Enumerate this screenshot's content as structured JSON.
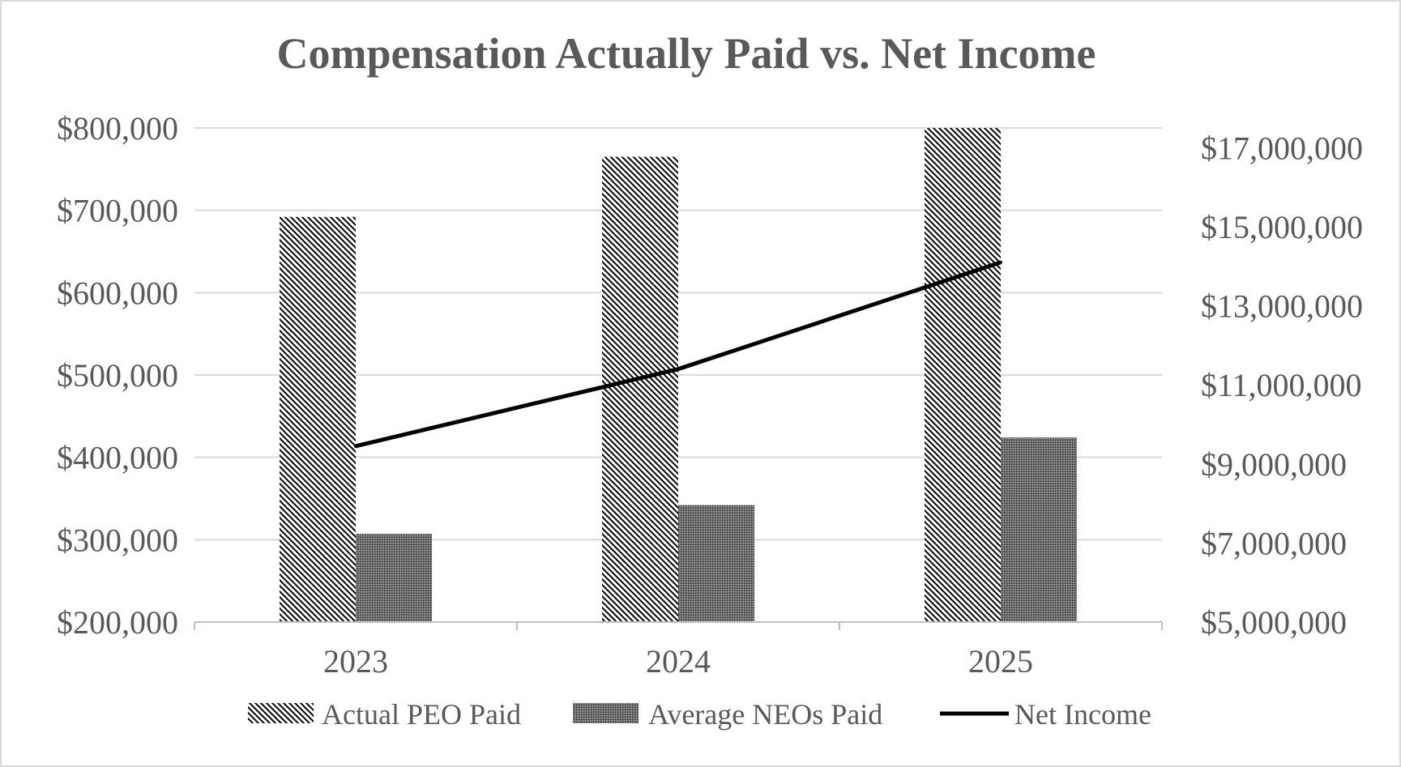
{
  "chart_data": {
    "type": "bar",
    "title": "Compensation Actually Paid vs. Net Income",
    "categories": [
      "2023",
      "2024",
      "2025"
    ],
    "series": [
      {
        "name": "Actual PEO Paid",
        "kind": "bar",
        "axis": "left",
        "pattern": "diagonal-hatch",
        "values": [
          692000,
          765000,
          800000
        ]
      },
      {
        "name": "Average NEOs Paid",
        "kind": "bar",
        "axis": "left",
        "pattern": "dense-dot",
        "values": [
          307000,
          342000,
          424000
        ]
      },
      {
        "name": "Net Income",
        "kind": "line",
        "axis": "right",
        "color": "#000000",
        "values": [
          9450000,
          11400000,
          14100000
        ]
      }
    ],
    "y_left": {
      "min": 200000,
      "max": 800000,
      "ticks": [
        800000,
        700000,
        600000,
        500000,
        400000,
        300000,
        200000
      ],
      "tick_labels": [
        "$800,000",
        "$700,000",
        "$600,000",
        "$500,000",
        "$400,000",
        "$300,000",
        "$200,000"
      ]
    },
    "y_right": {
      "min": 5000000,
      "max": 17500000,
      "ticks": [
        17000000,
        15000000,
        13000000,
        11000000,
        9000000,
        7000000,
        5000000
      ],
      "tick_labels": [
        "$17,000,000",
        "$15,000,000",
        "$13,000,000",
        "$11,000,000",
        "$9,000,000",
        "$7,000,000",
        "$5,000,000"
      ]
    },
    "grid": true,
    "legend_position": "bottom",
    "colors": {
      "text": "#595959",
      "grid": "#d9d9d9",
      "bar_fill": "#000000",
      "line": "#000000"
    }
  }
}
